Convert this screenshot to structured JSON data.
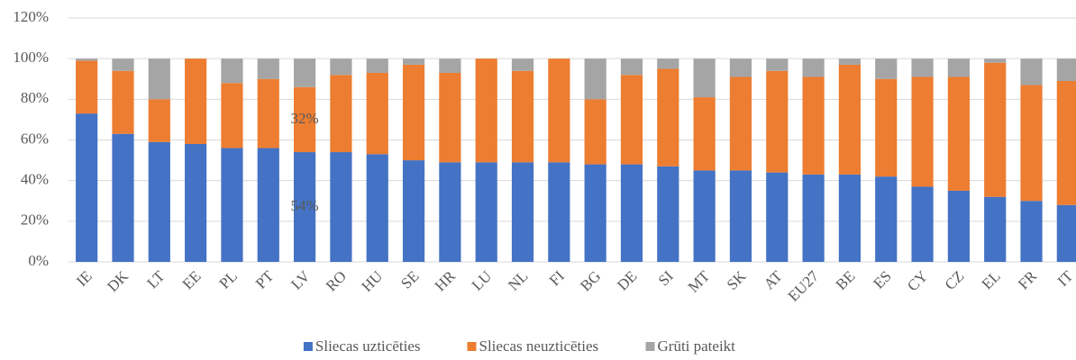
{
  "chart_data": {
    "type": "stacked_bar",
    "categories": [
      "IE",
      "DK",
      "LT",
      "EE",
      "PL",
      "PT",
      "LV",
      "RO",
      "HU",
      "SE",
      "HR",
      "LU",
      "NL",
      "FI",
      "BG",
      "DE",
      "SI",
      "MT",
      "SK",
      "AT",
      "EU27",
      "BE",
      "ES",
      "CY",
      "CZ",
      "EL",
      "FR",
      "IT"
    ],
    "series": [
      {
        "name": "Sliecas uzticēties",
        "color": "#4472c4",
        "values": [
          73,
          63,
          59,
          58,
          56,
          56,
          54,
          54,
          53,
          50,
          49,
          49,
          49,
          49,
          48,
          48,
          47,
          45,
          45,
          44,
          43,
          43,
          42,
          37,
          35,
          32,
          30,
          28
        ],
        "value_labels": [
          null,
          null,
          null,
          null,
          null,
          null,
          "54%",
          null,
          null,
          null,
          null,
          null,
          null,
          null,
          null,
          null,
          null,
          null,
          null,
          null,
          null,
          null,
          null,
          null,
          null,
          null,
          null,
          null
        ]
      },
      {
        "name": "Sliecas neuzticēties",
        "color": "#ed7d31",
        "values": [
          26,
          31,
          21,
          42,
          32,
          34,
          32,
          38,
          40,
          47,
          44,
          51,
          45,
          51,
          32,
          44,
          48,
          36,
          46,
          50,
          48,
          54,
          48,
          54,
          56,
          66,
          57,
          61
        ],
        "value_labels": [
          null,
          null,
          null,
          null,
          null,
          null,
          "32%",
          null,
          null,
          null,
          null,
          null,
          null,
          null,
          null,
          null,
          null,
          null,
          null,
          null,
          null,
          null,
          null,
          null,
          null,
          null,
          null,
          null
        ]
      },
      {
        "name": "Grūti pateikt",
        "color": "#a5a5a5",
        "values": [
          1,
          6,
          20,
          0,
          12,
          10,
          14,
          8,
          7,
          3,
          7,
          0,
          6,
          0,
          20,
          8,
          5,
          19,
          9,
          6,
          9,
          3,
          10,
          9,
          9,
          2,
          13,
          11
        ]
      }
    ],
    "ylim": [
      0,
      120
    ],
    "yticks": [
      {
        "value": 0,
        "label": "0%"
      },
      {
        "value": 20,
        "label": "20%"
      },
      {
        "value": 40,
        "label": "40%"
      },
      {
        "value": 60,
        "label": "60%"
      },
      {
        "value": 80,
        "label": "80%"
      },
      {
        "value": 100,
        "label": "100%"
      },
      {
        "value": 120,
        "label": "120%"
      }
    ],
    "grid": true,
    "legend": "bottom"
  }
}
